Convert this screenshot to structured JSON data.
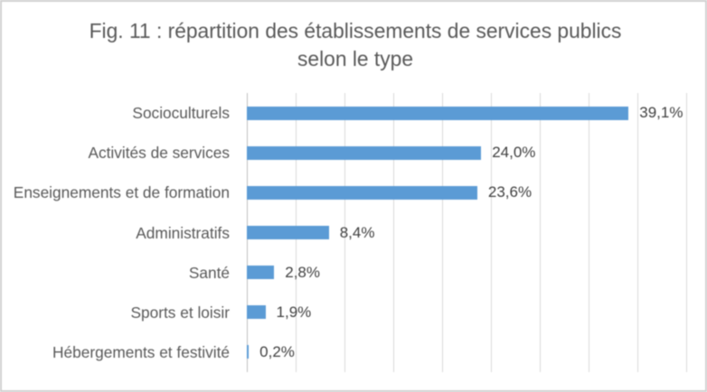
{
  "chart": {
    "title_lines": [
      "Fig. 11 : répartition des établissements de services publics",
      "selon le type"
    ]
  },
  "chart_data": {
    "type": "bar",
    "orientation": "horizontal",
    "title": "Fig. 11 : répartition des établissements de services publics selon le type",
    "categories": [
      "Socioculturels",
      "Activités de services",
      "Enseignements et de formation",
      "Administratifs",
      "Santé",
      "Sports et loisir",
      "Hébergements et festivité"
    ],
    "values": [
      39.1,
      24.0,
      23.6,
      8.4,
      2.8,
      1.9,
      0.2
    ],
    "value_labels": [
      "39,1%",
      "24,0%",
      "23,6%",
      "8,4%",
      "2,8%",
      "1,9%",
      "0,2%"
    ],
    "xlabel": "",
    "ylabel": "",
    "xlim": [
      0,
      45
    ],
    "gridline_step": 5,
    "grid": true,
    "legend": false,
    "value_label_position": "outside-end",
    "colors": {
      "bar": "#5b9bd5",
      "gridline": "#d9d9d9",
      "axis_line": "#bfbfbf",
      "title_text": "#595959",
      "category_text": "#595959",
      "value_text": "#404040",
      "frame_border": "#d0d0d0",
      "background": "#ffffff"
    }
  }
}
